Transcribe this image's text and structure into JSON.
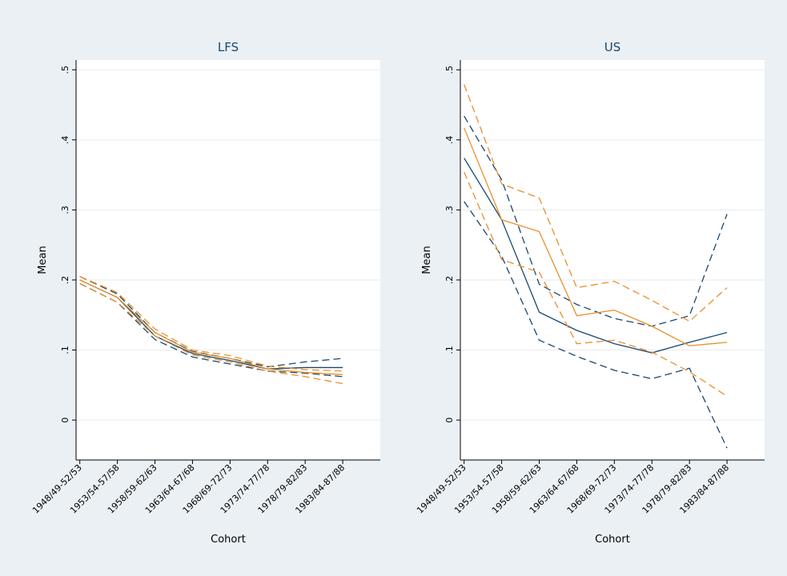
{
  "chart_data": [
    {
      "type": "line",
      "title": "LFS",
      "xlabel": "Cohort",
      "ylabel": "Mean",
      "categories": [
        "1948/49-52/53",
        "1953/54-57/58",
        "1958/59-62/63",
        "1963/64-67/68",
        "1968/69-72/73",
        "1973/74-77/78",
        "1978/79-82/83",
        "1983/84-87/88"
      ],
      "ylim": [
        -0.057,
        0.514
      ],
      "yticks": [
        0,
        {
          "value": 0.1,
          "label": ".1"
        },
        {
          "value": 0.2,
          "label": ".2"
        },
        {
          "value": 0.3,
          "label": ".3"
        },
        {
          "value": 0.4,
          "label": ".4"
        },
        {
          "value": 0.5,
          "label": ".5"
        }
      ],
      "grid": true,
      "series": [
        {
          "color": "#1a476f",
          "dashed": false,
          "values": [
            0.2,
            0.175,
            0.12,
            0.095,
            0.085,
            0.073,
            0.075,
            0.075
          ]
        },
        {
          "color": "#1a476f",
          "dashed": true,
          "values": [
            0.205,
            0.18,
            0.125,
            0.098,
            0.088,
            0.076,
            0.083,
            0.088
          ]
        },
        {
          "color": "#1a476f",
          "dashed": true,
          "values": [
            0.195,
            0.168,
            0.115,
            0.09,
            0.08,
            0.07,
            0.067,
            0.062
          ]
        },
        {
          "color": "#e8902a",
          "dashed": false,
          "values": [
            0.2,
            0.175,
            0.125,
            0.097,
            0.088,
            0.073,
            0.068,
            0.065
          ]
        },
        {
          "color": "#e8902a",
          "dashed": true,
          "values": [
            0.205,
            0.182,
            0.13,
            0.1,
            0.092,
            0.077,
            0.072,
            0.07
          ]
        },
        {
          "color": "#e8902a",
          "dashed": true,
          "values": [
            0.195,
            0.168,
            0.12,
            0.093,
            0.083,
            0.07,
            0.062,
            0.052
          ]
        }
      ]
    },
    {
      "type": "line",
      "title": "US",
      "xlabel": "Cohort",
      "ylabel": "Mean",
      "categories": [
        "1948/49-52/53",
        "1953/54-57/58",
        "1958/59-62/63",
        "1963/64-67/68",
        "1968/69-72/73",
        "1973/74-77/78",
        "1978/79-82/83",
        "1983/84-87/88"
      ],
      "ylim": [
        -0.057,
        0.514
      ],
      "yticks": [
        0,
        {
          "value": 0.1,
          "label": ".1"
        },
        {
          "value": 0.2,
          "label": ".2"
        },
        {
          "value": 0.3,
          "label": ".3"
        },
        {
          "value": 0.4,
          "label": ".4"
        },
        {
          "value": 0.5,
          "label": ".5"
        }
      ],
      "grid": true,
      "series": [
        {
          "color": "#1a476f",
          "dashed": false,
          "values": [
            0.374,
            0.286,
            0.154,
            0.128,
            0.109,
            0.096,
            0.111,
            0.125
          ]
        },
        {
          "color": "#1a476f",
          "dashed": true,
          "values": [
            0.434,
            0.343,
            0.194,
            0.165,
            0.145,
            0.134,
            0.149,
            0.294
          ]
        },
        {
          "color": "#1a476f",
          "dashed": true,
          "values": [
            0.312,
            0.234,
            0.114,
            0.091,
            0.071,
            0.059,
            0.074,
            -0.04
          ]
        },
        {
          "color": "#e8902a",
          "dashed": false,
          "values": [
            0.417,
            0.286,
            0.269,
            0.149,
            0.157,
            0.134,
            0.106,
            0.111
          ]
        },
        {
          "color": "#e8902a",
          "dashed": true,
          "values": [
            0.479,
            0.337,
            0.317,
            0.189,
            0.198,
            0.171,
            0.141,
            0.189
          ]
        },
        {
          "color": "#e8902a",
          "dashed": true,
          "values": [
            0.354,
            0.229,
            0.211,
            0.109,
            0.114,
            0.097,
            0.069,
            0.034
          ]
        }
      ]
    }
  ]
}
